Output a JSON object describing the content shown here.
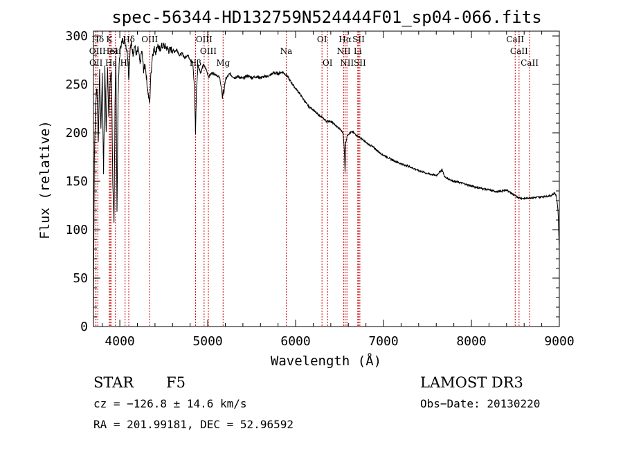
{
  "chart_data": {
    "type": "line",
    "title": "spec-56344-HD132759N524444F01_sp04-066.fits",
    "xlabel": "Wavelength (Å)",
    "ylabel": "Flux (relative)",
    "xlim": [
      3700,
      9000
    ],
    "ylim": [
      0,
      305
    ],
    "xticks": [
      4000,
      5000,
      6000,
      7000,
      8000,
      9000
    ],
    "yticks": [
      0,
      50,
      100,
      150,
      200,
      250,
      300
    ],
    "xtick_labels": [
      "4000",
      "5000",
      "6000",
      "7000",
      "8000",
      "9000"
    ],
    "ytick_labels": [
      "0",
      "50",
      "100",
      "150",
      "200",
      "250",
      "300"
    ],
    "series": [
      {
        "name": "flux",
        "x": [
          3700,
          3710,
          3725,
          3740,
          3755,
          3770,
          3785,
          3800,
          3815,
          3830,
          3845,
          3860,
          3875,
          3890,
          3905,
          3920,
          3934,
          3945,
          3955,
          3968,
          3980,
          3995,
          4010,
          4025,
          4040,
          4060,
          4075,
          4090,
          4102,
          4115,
          4130,
          4150,
          4170,
          4190,
          4210,
          4230,
          4250,
          4270,
          4290,
          4310,
          4330,
          4340,
          4350,
          4370,
          4390,
          4410,
          4430,
          4450,
          4470,
          4500,
          4530,
          4560,
          4590,
          4620,
          4650,
          4680,
          4710,
          4740,
          4770,
          4800,
          4830,
          4850,
          4861,
          4872,
          4890,
          4920,
          4950,
          4980,
          5010,
          5050,
          5100,
          5140,
          5167,
          5175,
          5183,
          5200,
          5250,
          5300,
          5350,
          5400,
          5450,
          5500,
          5550,
          5600,
          5650,
          5700,
          5750,
          5800,
          5850,
          5893,
          5950,
          6000,
          6050,
          6100,
          6150,
          6200,
          6250,
          6300,
          6350,
          6400,
          6450,
          6500,
          6540,
          6555,
          6563,
          6570,
          6590,
          6620,
          6650,
          6700,
          6750,
          6800,
          6850,
          6900,
          6950,
          7000,
          7100,
          7200,
          7300,
          7400,
          7500,
          7600,
          7665,
          7700,
          7800,
          7900,
          8000,
          8100,
          8200,
          8300,
          8400,
          8498,
          8542,
          8600,
          8662,
          8700,
          8800,
          8900,
          8950,
          8970,
          8985,
          9000
        ],
        "values": [
          5,
          175,
          230,
          248,
          190,
          262,
          205,
          258,
          160,
          266,
          200,
          270,
          215,
          252,
          265,
          145,
          105,
          230,
          280,
          115,
          240,
          275,
          290,
          294,
          296,
          294,
          288,
          280,
          255,
          285,
          292,
          282,
          290,
          280,
          287,
          270,
          285,
          265,
          270,
          250,
          235,
          230,
          255,
          280,
          287,
          284,
          291,
          285,
          289,
          290,
          288,
          285,
          286,
          284,
          286,
          280,
          282,
          277,
          281,
          276,
          272,
          245,
          200,
          245,
          270,
          262,
          270,
          266,
          258,
          262,
          260,
          256,
          236,
          245,
          240,
          255,
          261,
          257,
          258,
          256,
          259,
          257,
          258,
          257,
          258,
          259,
          262,
          261,
          263,
          260,
          252,
          246,
          240,
          233,
          227,
          224,
          219,
          216,
          212,
          212,
          208,
          204,
          200,
          180,
          160,
          190,
          198,
          200,
          201,
          197,
          194,
          190,
          187,
          184,
          180,
          177,
          172,
          168,
          165,
          161,
          158,
          156,
          162,
          154,
          150,
          148,
          145,
          143,
          141,
          139,
          141,
          135,
          133,
          132,
          133,
          133,
          134,
          135,
          138,
          133,
          120,
          80
        ]
      }
    ],
    "line_markers": [
      {
        "name": "Hδ",
        "x": 3750,
        "row": 1
      },
      {
        "name": "OII",
        "x": 3727,
        "row": 2
      },
      {
        "name": "OII",
        "x": 3729,
        "row": 3
      },
      {
        "name": "K",
        "x": 3880,
        "row": 1
      },
      {
        "name": "HeI",
        "x": 3890,
        "row": 2
      },
      {
        "name": "Hε",
        "x": 3900,
        "row": 3
      },
      {
        "name": "Sii",
        "x": 3950,
        "row": 2
      },
      {
        "name": "Hδ",
        "x": 4102,
        "row": 1
      },
      {
        "name": "Hi",
        "x": 4060,
        "row": 3
      },
      {
        "name": "OIII",
        "x": 4340,
        "row": 1
      },
      {
        "name": "Hβ",
        "x": 4861,
        "row": 3
      },
      {
        "name": "OIII",
        "x": 4959,
        "row": 1
      },
      {
        "name": "OIII",
        "x": 5007,
        "row": 2
      },
      {
        "name": "Mg",
        "x": 5175,
        "row": 3
      },
      {
        "name": "Na",
        "x": 5893,
        "row": 2
      },
      {
        "name": "OI",
        "x": 6300,
        "row": 1
      },
      {
        "name": "OI",
        "x": 6363,
        "row": 3
      },
      {
        "name": "Hα",
        "x": 6563,
        "row": 1
      },
      {
        "name": "SII",
        "x": 6716,
        "row": 1
      },
      {
        "name": "NII",
        "x": 6548,
        "row": 2
      },
      {
        "name": "Li",
        "x": 6707,
        "row": 2
      },
      {
        "name": "NII",
        "x": 6584,
        "row": 3
      },
      {
        "name": "SII",
        "x": 6731,
        "row": 3
      },
      {
        "name": "CaII",
        "x": 8498,
        "row": 1
      },
      {
        "name": "CaII",
        "x": 8542,
        "row": 2
      },
      {
        "name": "CaII",
        "x": 8662,
        "row": 3
      }
    ],
    "marker_color": "#cc0000"
  },
  "info": {
    "object_class": "STAR",
    "subclass": "F5",
    "survey": "LAMOST DR3",
    "velocity": "cz = −126.8 ± 14.6 km/s",
    "obs_date": "Obs−Date: 20130220",
    "coords": "RA = 201.99181, DEC =  52.96592"
  }
}
